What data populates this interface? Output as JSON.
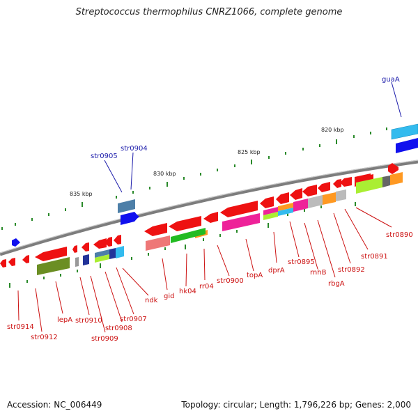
{
  "title": "Streptococcus thermophilus CNRZ1066, complete genome",
  "accession": "Accession: NC_006449",
  "summary": "Topology: circular; Length: 1,796,226 bp; Genes: 2,000",
  "colors": {
    "backbone": "#8a8a8a",
    "tick": "#2a8a2a",
    "forward_label": "#1a1aaa",
    "reverse_label": "#cc1111",
    "reverse_gene": "#ee1111",
    "forward_gene": "#1010ee"
  },
  "scale_labels": [
    "820 kbp",
    "825 kbp",
    "830 kbp",
    "835 kbp"
  ],
  "forward_labels": [
    "guaA",
    "str0905",
    "str0904"
  ],
  "reverse_labels": [
    "str0890",
    "str0891",
    "str0892",
    "rbgA",
    "rnhB",
    "str0895",
    "dprA",
    "topA",
    "str0900",
    "rr04",
    "hk04",
    "gid",
    "ndk",
    "str0907",
    "str0908",
    "str0909",
    "str0910",
    "lepA",
    "str0912",
    "str0914"
  ]
}
